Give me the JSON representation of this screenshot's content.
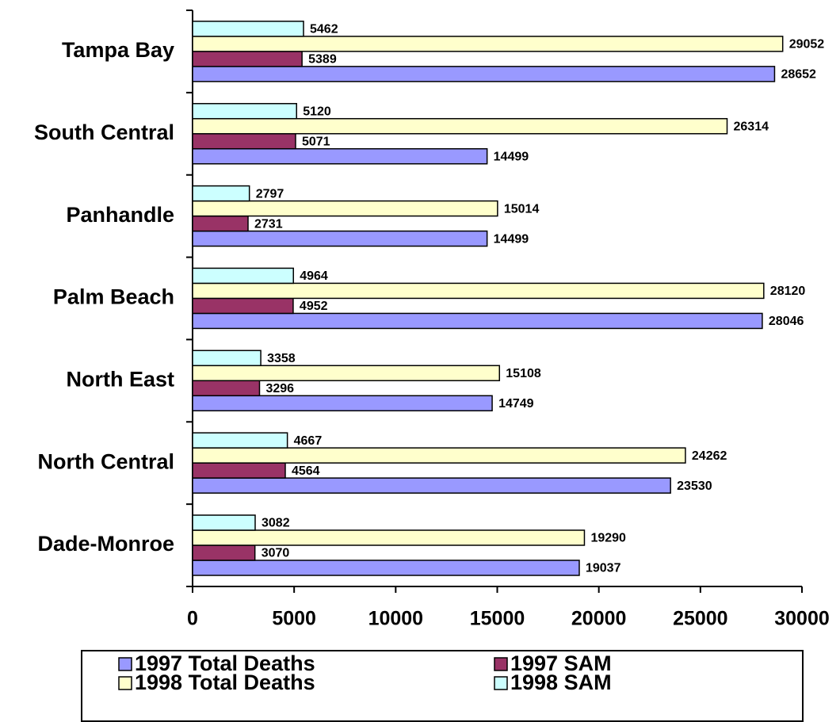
{
  "chart_data": {
    "type": "bar",
    "orientation": "horizontal",
    "categories": [
      "Dade-Monroe",
      "North Central",
      "North East",
      "Palm Beach",
      "Panhandle",
      "South Central",
      "Tampa Bay"
    ],
    "series": [
      {
        "name": "1997 Total Deaths",
        "color": "#9999ff",
        "values": [
          19037,
          23530,
          14749,
          28046,
          14499,
          14499,
          28652
        ]
      },
      {
        "name": "1997 SAM",
        "color": "#993366",
        "values": [
          3070,
          4564,
          3296,
          4952,
          2731,
          5071,
          5389
        ]
      },
      {
        "name": "1998 Total Deaths",
        "color": "#ffffcc",
        "values": [
          19290,
          24262,
          15108,
          28120,
          15014,
          26314,
          29052
        ]
      },
      {
        "name": "1998 SAM",
        "color": "#ccffff",
        "values": [
          3082,
          4667,
          3358,
          4964,
          2797,
          5120,
          5462
        ]
      }
    ],
    "xlim": [
      0,
      30000
    ],
    "xticks": [
      0,
      5000,
      10000,
      15000,
      20000,
      25000,
      30000
    ],
    "legend": "bottom"
  }
}
